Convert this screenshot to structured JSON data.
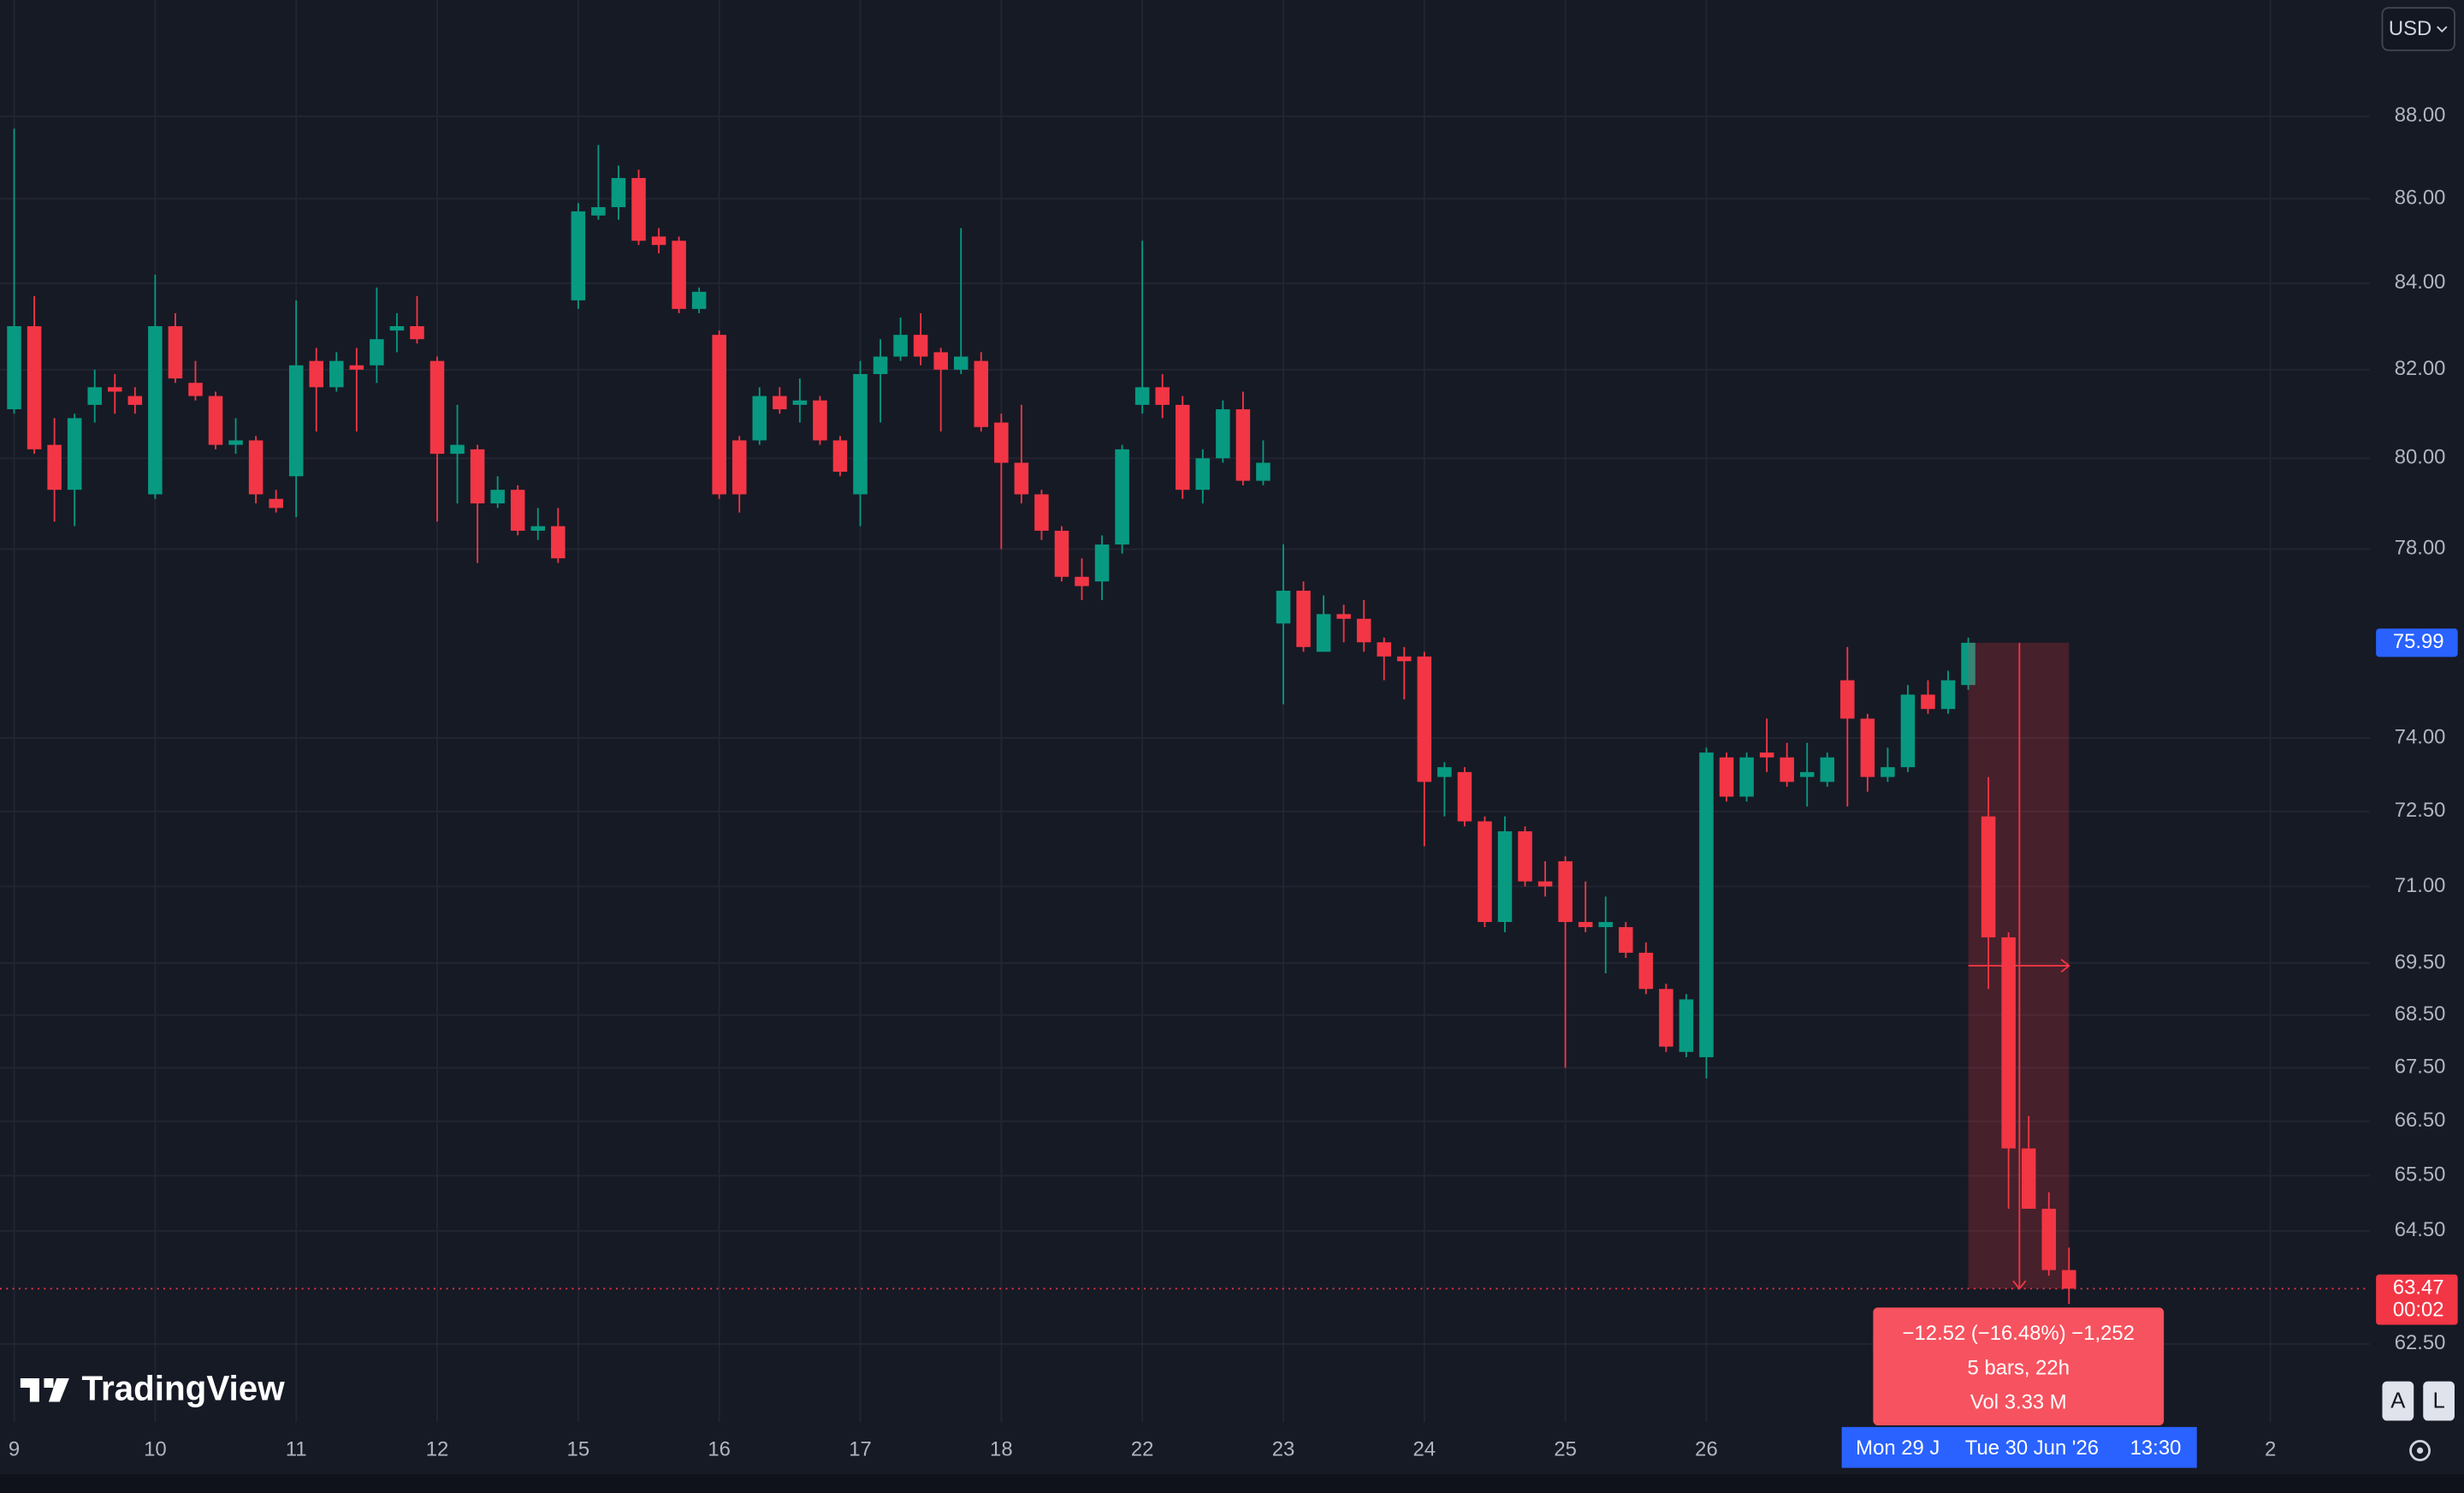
{
  "chart_data": {
    "type": "candlestick",
    "currency": "USD",
    "log_scale": true,
    "grid": true,
    "up_color": "#089981",
    "down_color": "#f23645",
    "ylim": [
      61.15,
      90.9
    ],
    "yticks": [
      {
        "value": 88,
        "label": "88.00"
      },
      {
        "value": 86,
        "label": "86.00"
      },
      {
        "value": 84,
        "label": "84.00"
      },
      {
        "value": 82,
        "label": "82.00"
      },
      {
        "value": 80,
        "label": "80.00"
      },
      {
        "value": 78,
        "label": "78.00"
      },
      {
        "value": 74,
        "label": "74.00"
      },
      {
        "value": 72.5,
        "label": "72.50"
      },
      {
        "value": 71,
        "label": "71.00"
      },
      {
        "value": 69.5,
        "label": "69.50"
      },
      {
        "value": 68.5,
        "label": "68.50"
      },
      {
        "value": 67.5,
        "label": "67.50"
      },
      {
        "value": 66.5,
        "label": "66.50"
      },
      {
        "value": 65.5,
        "label": "65.50"
      },
      {
        "value": 64.5,
        "label": "64.50"
      },
      {
        "value": 62.5,
        "label": "62.50"
      }
    ],
    "categories": [
      "9",
      null,
      null,
      null,
      null,
      null,
      null,
      "10",
      null,
      null,
      null,
      null,
      null,
      null,
      "11",
      null,
      null,
      null,
      null,
      null,
      null,
      "12",
      null,
      null,
      null,
      null,
      null,
      null,
      "15",
      null,
      null,
      null,
      null,
      null,
      null,
      "16",
      null,
      null,
      null,
      null,
      null,
      null,
      "17",
      null,
      null,
      null,
      null,
      null,
      null,
      "18",
      null,
      null,
      null,
      null,
      null,
      null,
      "22",
      null,
      null,
      null,
      null,
      null,
      null,
      "23",
      null,
      null,
      null,
      null,
      null,
      null,
      "24",
      null,
      null,
      null,
      null,
      null,
      null,
      "25",
      null,
      null,
      null,
      null,
      null,
      null,
      "26",
      null,
      null,
      null,
      null,
      null,
      null,
      null,
      null,
      null,
      null,
      null,
      null,
      null,
      null,
      null,
      null,
      null,
      null,
      null,
      null,
      null,
      null,
      null,
      null,
      null,
      null,
      null,
      "2"
    ],
    "open": [
      81.1,
      83.0,
      80.3,
      79.3,
      81.2,
      81.6,
      81.4,
      79.2,
      83.0,
      81.7,
      81.4,
      80.3,
      80.4,
      79.1,
      79.6,
      82.2,
      81.6,
      82.1,
      82.1,
      82.9,
      83.0,
      82.2,
      80.1,
      80.2,
      79.0,
      79.3,
      78.4,
      78.5,
      83.6,
      85.6,
      85.8,
      86.5,
      85.1,
      85.0,
      83.4,
      82.8,
      80.4,
      80.4,
      81.4,
      81.2,
      81.3,
      80.4,
      79.2,
      81.9,
      82.3,
      82.8,
      82.4,
      82.0,
      82.2,
      80.8,
      79.9,
      79.2,
      78.4,
      77.4,
      77.3,
      78.1,
      81.2,
      81.6,
      81.2,
      79.3,
      80.0,
      81.1,
      79.5,
      76.4,
      77.1,
      75.8,
      76.6,
      76.5,
      76.0,
      75.7,
      75.7,
      73.2,
      73.3,
      72.3,
      70.3,
      72.1,
      71.1,
      71.5,
      70.3,
      70.2,
      70.2,
      69.7,
      69.0,
      67.8,
      67.7,
      73.6,
      72.8,
      73.7,
      73.6,
      73.2,
      73.1,
      75.2,
      74.4,
      73.2,
      73.4,
      74.9,
      74.6,
      75.1,
      72.4,
      70.0,
      66.0,
      64.9,
      63.8,
      null,
      null,
      null,
      null,
      null,
      null,
      null,
      null,
      null,
      null
    ],
    "high": [
      87.7,
      83.7,
      80.9,
      81.0,
      82.0,
      81.9,
      81.6,
      84.2,
      83.3,
      82.2,
      81.5,
      80.9,
      80.5,
      79.3,
      83.6,
      82.5,
      82.4,
      82.5,
      83.9,
      83.3,
      83.7,
      82.3,
      81.2,
      80.3,
      79.6,
      79.4,
      78.9,
      78.9,
      85.9,
      87.3,
      86.8,
      86.7,
      85.3,
      85.1,
      83.9,
      82.9,
      80.5,
      81.6,
      81.6,
      81.8,
      81.4,
      80.5,
      82.2,
      82.7,
      83.2,
      83.3,
      82.5,
      85.3,
      82.4,
      81.0,
      81.2,
      79.3,
      78.5,
      77.8,
      78.3,
      80.3,
      85.0,
      81.9,
      81.4,
      80.2,
      81.3,
      81.5,
      80.4,
      78.1,
      77.3,
      77.0,
      76.8,
      76.9,
      76.1,
      75.9,
      75.8,
      73.5,
      73.4,
      72.4,
      72.4,
      72.2,
      71.5,
      71.6,
      71.1,
      70.8,
      70.3,
      69.9,
      69.1,
      68.9,
      73.8,
      73.7,
      73.7,
      74.4,
      73.9,
      73.9,
      73.7,
      75.9,
      74.5,
      73.8,
      75.1,
      75.2,
      75.4,
      76.1,
      73.2,
      70.1,
      66.6,
      65.2,
      64.2,
      null,
      null,
      null,
      null,
      null,
      null,
      null,
      null,
      null,
      null
    ],
    "low": [
      81.0,
      80.1,
      78.6,
      78.5,
      80.8,
      81.0,
      81.0,
      79.1,
      81.7,
      81.3,
      80.2,
      80.1,
      79.0,
      78.8,
      78.7,
      80.6,
      81.5,
      80.6,
      81.7,
      82.4,
      82.6,
      78.6,
      79.0,
      77.7,
      78.9,
      78.3,
      78.2,
      77.7,
      83.4,
      85.5,
      85.5,
      84.9,
      84.7,
      83.3,
      83.3,
      79.1,
      78.8,
      80.3,
      81.0,
      80.8,
      80.3,
      79.6,
      78.5,
      80.8,
      82.2,
      82.1,
      80.6,
      81.9,
      80.6,
      78.0,
      79.0,
      78.2,
      77.3,
      76.9,
      76.9,
      77.9,
      81.0,
      80.9,
      79.1,
      79.0,
      79.9,
      79.4,
      79.4,
      74.7,
      75.8,
      75.8,
      76.0,
      75.8,
      75.2,
      74.8,
      71.8,
      72.4,
      72.2,
      70.2,
      70.1,
      71.0,
      70.8,
      67.5,
      70.1,
      69.3,
      69.6,
      68.9,
      67.8,
      67.7,
      67.3,
      72.7,
      72.7,
      73.3,
      73.0,
      72.6,
      73.0,
      72.6,
      72.9,
      73.1,
      73.3,
      74.5,
      74.5,
      75.0,
      69.0,
      64.9,
      64.9,
      63.7,
      63.2,
      null,
      null,
      null,
      null,
      null,
      null,
      null,
      null,
      null,
      null
    ],
    "close": [
      83.0,
      80.2,
      79.3,
      80.9,
      81.6,
      81.5,
      81.2,
      83.0,
      81.8,
      81.4,
      80.3,
      80.4,
      79.2,
      78.9,
      82.1,
      81.6,
      82.2,
      82.0,
      82.7,
      83.0,
      82.7,
      80.1,
      80.3,
      79.0,
      79.3,
      78.4,
      78.5,
      77.8,
      85.7,
      85.8,
      86.5,
      85.0,
      84.9,
      83.4,
      83.8,
      79.2,
      79.2,
      81.4,
      81.1,
      81.3,
      80.4,
      79.7,
      81.9,
      82.3,
      82.8,
      82.3,
      82.0,
      82.3,
      80.7,
      79.9,
      79.2,
      78.4,
      77.4,
      77.2,
      78.1,
      80.2,
      81.6,
      81.2,
      79.3,
      80.0,
      81.1,
      79.5,
      79.9,
      77.1,
      75.9,
      76.6,
      76.5,
      76.0,
      75.7,
      75.6,
      73.1,
      73.4,
      72.3,
      70.3,
      72.1,
      71.1,
      71.0,
      70.3,
      70.2,
      70.3,
      69.7,
      69.0,
      67.9,
      68.8,
      73.7,
      72.8,
      73.6,
      73.6,
      73.1,
      73.3,
      73.6,
      74.4,
      73.2,
      73.4,
      74.9,
      74.6,
      75.2,
      75.99,
      70.0,
      66.0,
      64.9,
      63.8,
      63.47,
      null,
      null,
      null,
      null,
      null,
      null,
      null,
      null,
      null,
      null
    ],
    "marker_price": 75.99,
    "last_price": 63.47,
    "countdown": "00:02",
    "measure": {
      "change_label": "−12.52 (−16.48%) −1,252",
      "bars_label": "5 bars, 22h",
      "volume_label": "Vol 3.33 M"
    },
    "range_labels": [
      "Mon 29 J",
      "Tue 30 Jun '26",
      "13:30"
    ],
    "logo": "TradingView",
    "scale_buttons": [
      "A",
      "L"
    ]
  }
}
